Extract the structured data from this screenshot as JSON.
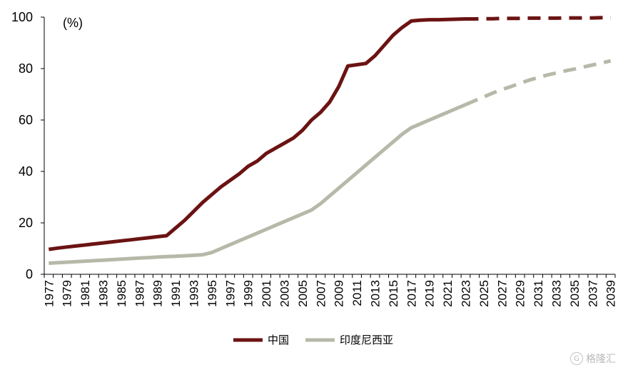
{
  "chart_data": {
    "type": "line",
    "unit_label": "(%)",
    "x": [
      1977,
      1978,
      1979,
      1980,
      1981,
      1982,
      1983,
      1984,
      1985,
      1986,
      1987,
      1988,
      1989,
      1990,
      1991,
      1992,
      1993,
      1994,
      1995,
      1996,
      1997,
      1998,
      1999,
      2000,
      2001,
      2002,
      2003,
      2004,
      2005,
      2006,
      2007,
      2008,
      2009,
      2010,
      2011,
      2012,
      2013,
      2014,
      2015,
      2016,
      2017,
      2018,
      2019,
      2020,
      2021,
      2022,
      2023,
      2024,
      2025,
      2026,
      2027,
      2028,
      2029,
      2030,
      2031,
      2032,
      2033,
      2034,
      2035,
      2036,
      2037,
      2038,
      2039
    ],
    "x_tick_labels": [
      "1977",
      "1979",
      "1981",
      "1983",
      "1985",
      "1987",
      "1989",
      "1991",
      "1993",
      "1995",
      "1997",
      "1999",
      "2001",
      "2003",
      "2005",
      "2007",
      "2009",
      "2011",
      "2013",
      "2015",
      "2017",
      "2019",
      "2021",
      "2023",
      "2025",
      "2027",
      "2029",
      "2031",
      "2033",
      "2035",
      "2037",
      "2039"
    ],
    "ylim": [
      0,
      100
    ],
    "y_ticks": [
      "0",
      "20",
      "40",
      "60",
      "80",
      "100"
    ],
    "grid": false,
    "legend_position": "bottom-center",
    "series": [
      {
        "name": "中国",
        "color": "#6b1313",
        "actual_end_year": 2023,
        "values": [
          9.7,
          10.2,
          10.6,
          11.0,
          11.4,
          11.8,
          12.2,
          12.6,
          13.0,
          13.4,
          13.8,
          14.2,
          14.6,
          15.0,
          18.0,
          21.0,
          24.5,
          28.0,
          31.0,
          34.0,
          36.5,
          39.0,
          42.0,
          44.0,
          47.0,
          49.0,
          51.0,
          53.0,
          56.0,
          60.0,
          63.0,
          67.0,
          73.0,
          81.0,
          81.5,
          82.0,
          85.0,
          89.0,
          93.0,
          96.0,
          98.5,
          98.8,
          99.0,
          99.0,
          99.1,
          99.2,
          99.3,
          99.3,
          99.4,
          99.4,
          99.5,
          99.5,
          99.5,
          99.6,
          99.6,
          99.6,
          99.6,
          99.7,
          99.7,
          99.7,
          99.7,
          99.8,
          99.8
        ]
      },
      {
        "name": "印度尼西亚",
        "color": "#b7b8a8",
        "actual_end_year": 2023,
        "values": [
          4.3,
          4.5,
          4.7,
          4.9,
          5.1,
          5.3,
          5.5,
          5.7,
          5.9,
          6.1,
          6.3,
          6.5,
          6.7,
          6.9,
          7.0,
          7.2,
          7.4,
          7.6,
          8.5,
          10.0,
          11.5,
          13.0,
          14.5,
          16.0,
          17.5,
          19.0,
          20.5,
          22.0,
          23.5,
          25.0,
          27.5,
          30.5,
          33.5,
          36.5,
          39.5,
          42.5,
          45.5,
          48.5,
          51.5,
          54.5,
          57.0,
          58.5,
          60.0,
          61.5,
          63.0,
          64.5,
          66.0,
          67.5,
          69.0,
          70.5,
          71.8,
          73.0,
          74.3,
          75.5,
          76.5,
          77.5,
          78.3,
          79.1,
          79.8,
          80.6,
          81.4,
          82.2,
          83.0
        ]
      }
    ]
  },
  "watermark": {
    "icon": "gelonghui-logo-icon",
    "badge_glyph": "G",
    "text": "格隆汇"
  }
}
